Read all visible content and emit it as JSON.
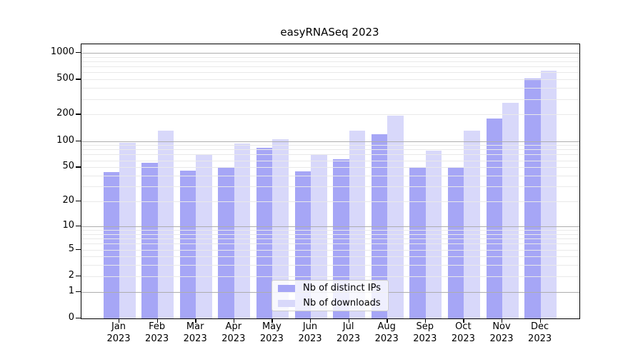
{
  "chart_data": {
    "type": "bar",
    "title": "easyRNASeq 2023",
    "categories": [
      "Jan",
      "Feb",
      "Mar",
      "Apr",
      "May",
      "Jun",
      "Jul",
      "Aug",
      "Sep",
      "Oct",
      "Nov",
      "Dec"
    ],
    "year": "2023",
    "series": [
      {
        "name": "Nb of distinct IPs",
        "key": "distinct-ips",
        "color": "#a6a6f6",
        "values": [
          44,
          56,
          46,
          50,
          83,
          45,
          62,
          120,
          50,
          50,
          180,
          510
        ]
      },
      {
        "name": "Nb of downloads",
        "key": "downloads",
        "color": "#d8d8fa",
        "values": [
          95,
          130,
          70,
          93,
          104,
          71,
          130,
          196,
          77,
          130,
          270,
          630
        ]
      }
    ],
    "xlabel": "",
    "ylabel": "",
    "yscale": "log1p",
    "ylim": [
      0,
      1250
    ],
    "yticks": [
      0,
      1,
      2,
      5,
      10,
      20,
      50,
      100,
      200,
      500,
      1000
    ],
    "major_gridlines": [
      1,
      10,
      100,
      1000
    ],
    "minor_gridlines": [
      2,
      3,
      4,
      5,
      6,
      7,
      8,
      9,
      20,
      30,
      40,
      50,
      60,
      70,
      80,
      90,
      200,
      300,
      400,
      500,
      600,
      700,
      800,
      900
    ],
    "grid": "on",
    "legend_position": "lower center",
    "colors": {
      "major_grid": "#adadad",
      "minor_grid": "#e9e9e9",
      "spine": "#000000",
      "background": "#ffffff",
      "text": "#000000"
    }
  }
}
